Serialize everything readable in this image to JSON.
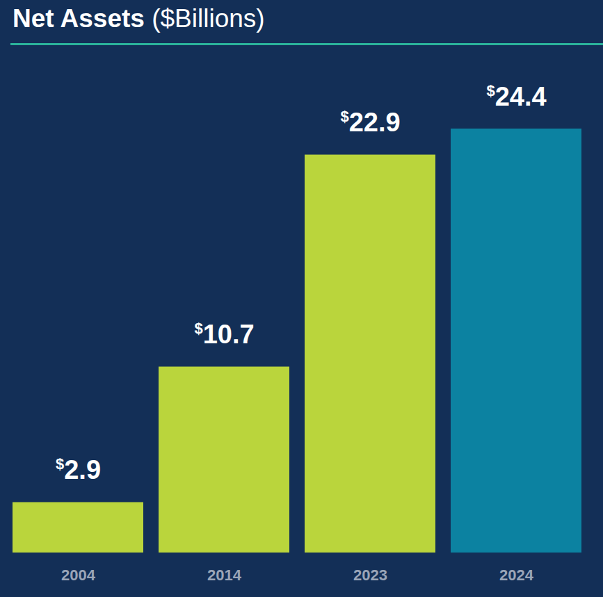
{
  "chart_data": {
    "type": "bar",
    "title": "Net Assets",
    "subtitle": "($Billions)",
    "categories": [
      "2004",
      "2014",
      "2023",
      "2024"
    ],
    "values": [
      2.9,
      10.7,
      22.9,
      24.4
    ],
    "value_labels": [
      "$2.9",
      "$10.7",
      "$22.9",
      "$24.4"
    ],
    "colors": [
      "#bad53c",
      "#bad53c",
      "#bad53c",
      "#0c82a1"
    ],
    "ylim": [
      0,
      24.4
    ],
    "data_labels": true,
    "tick_labels": "x",
    "grid": false
  }
}
